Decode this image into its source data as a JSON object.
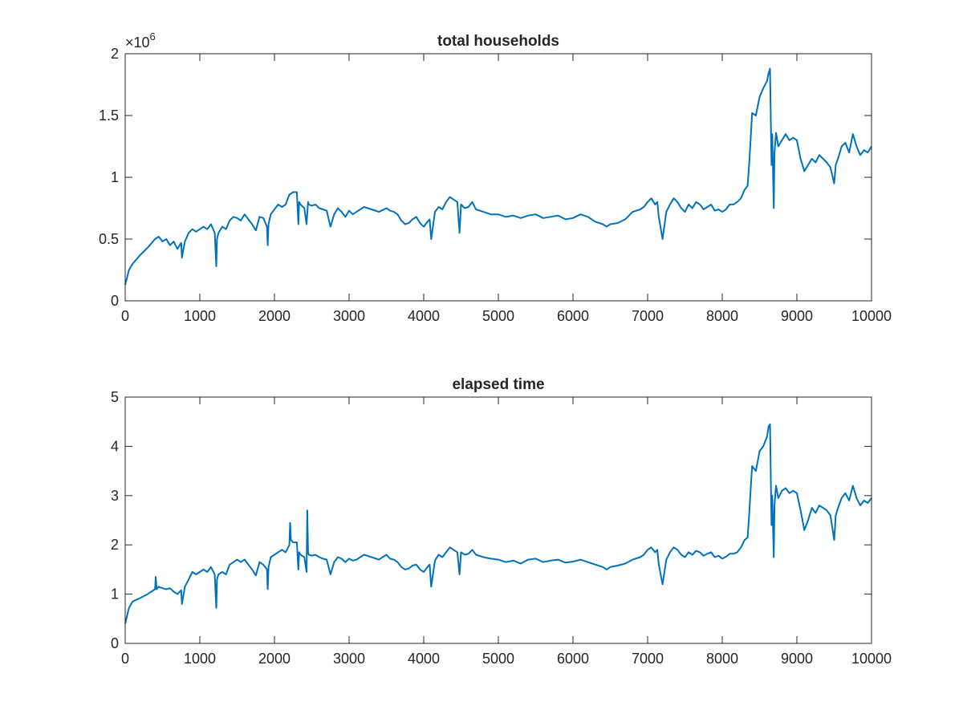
{
  "chart_data": [
    {
      "type": "line",
      "title": "total households",
      "xlim": [
        0,
        10000
      ],
      "ylim": [
        0,
        2
      ],
      "y_exponent_label": "×10",
      "y_exponent_power": "6",
      "xticks": [
        "0",
        "1000",
        "2000",
        "3000",
        "4000",
        "5000",
        "6000",
        "7000",
        "8000",
        "9000",
        "10000"
      ],
      "yticks": [
        "0",
        "0.5",
        "1",
        "1.5",
        "2"
      ],
      "grid": false,
      "line_color": "#0072BD",
      "series": [
        {
          "x": [
            0,
            50,
            100,
            200,
            300,
            400,
            450,
            500,
            550,
            600,
            650,
            700,
            750,
            760,
            800,
            850,
            900,
            950,
            1000,
            1050,
            1100,
            1150,
            1200,
            1220,
            1230,
            1250,
            1300,
            1350,
            1400,
            1450,
            1500,
            1550,
            1600,
            1650,
            1700,
            1750,
            1800,
            1850,
            1900,
            1910,
            1920,
            1950,
            2000,
            2050,
            2100,
            2150,
            2200,
            2250,
            2300,
            2320,
            2330,
            2350,
            2400,
            2430,
            2450,
            2460,
            2500,
            2550,
            2600,
            2650,
            2700,
            2750,
            2800,
            2850,
            2900,
            2950,
            3000,
            3050,
            3100,
            3200,
            3300,
            3400,
            3500,
            3550,
            3600,
            3650,
            3700,
            3750,
            3800,
            3850,
            3900,
            3950,
            4000,
            4050,
            4080,
            4100,
            4150,
            4200,
            4250,
            4300,
            4350,
            4400,
            4450,
            4480,
            4500,
            4550,
            4600,
            4650,
            4700,
            4800,
            4900,
            5000,
            5100,
            5200,
            5300,
            5400,
            5500,
            5600,
            5700,
            5800,
            5900,
            6000,
            6100,
            6200,
            6300,
            6400,
            6450,
            6500,
            6600,
            6700,
            6800,
            6900,
            6950,
            7000,
            7050,
            7100,
            7130,
            7150,
            7200,
            7250,
            7300,
            7350,
            7400,
            7450,
            7500,
            7550,
            7600,
            7650,
            7700,
            7750,
            7800,
            7850,
            7900,
            7950,
            8000,
            8050,
            8100,
            8150,
            8200,
            8250,
            8300,
            8340,
            8360,
            8380,
            8400,
            8450,
            8500,
            8550,
            8600,
            8620,
            8640,
            8660,
            8670,
            8690,
            8700,
            8720,
            8750,
            8800,
            8850,
            8900,
            8950,
            9000,
            9050,
            9100,
            9150,
            9200,
            9250,
            9300,
            9350,
            9400,
            9450,
            9500,
            9520,
            9550,
            9600,
            9650,
            9700,
            9750,
            9800,
            9850,
            9900,
            9950,
            10000
          ],
          "y": [
            0.13,
            0.25,
            0.3,
            0.37,
            0.43,
            0.5,
            0.52,
            0.48,
            0.5,
            0.45,
            0.48,
            0.42,
            0.47,
            0.35,
            0.48,
            0.55,
            0.58,
            0.56,
            0.58,
            0.6,
            0.58,
            0.62,
            0.55,
            0.28,
            0.5,
            0.55,
            0.6,
            0.58,
            0.65,
            0.68,
            0.67,
            0.65,
            0.7,
            0.66,
            0.62,
            0.57,
            0.68,
            0.67,
            0.6,
            0.45,
            0.62,
            0.7,
            0.74,
            0.78,
            0.76,
            0.78,
            0.86,
            0.88,
            0.88,
            0.62,
            0.8,
            0.78,
            0.75,
            0.62,
            0.8,
            0.78,
            0.77,
            0.78,
            0.75,
            0.74,
            0.73,
            0.6,
            0.7,
            0.75,
            0.72,
            0.68,
            0.73,
            0.7,
            0.72,
            0.76,
            0.74,
            0.72,
            0.75,
            0.73,
            0.72,
            0.7,
            0.65,
            0.62,
            0.63,
            0.66,
            0.68,
            0.63,
            0.6,
            0.64,
            0.66,
            0.5,
            0.72,
            0.76,
            0.74,
            0.8,
            0.84,
            0.82,
            0.8,
            0.55,
            0.78,
            0.75,
            0.76,
            0.8,
            0.74,
            0.72,
            0.7,
            0.7,
            0.68,
            0.69,
            0.67,
            0.69,
            0.7,
            0.67,
            0.68,
            0.69,
            0.66,
            0.67,
            0.7,
            0.68,
            0.64,
            0.62,
            0.6,
            0.62,
            0.63,
            0.66,
            0.72,
            0.74,
            0.76,
            0.8,
            0.83,
            0.78,
            0.8,
            0.68,
            0.5,
            0.72,
            0.78,
            0.83,
            0.8,
            0.75,
            0.72,
            0.78,
            0.75,
            0.8,
            0.78,
            0.74,
            0.76,
            0.78,
            0.73,
            0.74,
            0.72,
            0.74,
            0.78,
            0.78,
            0.8,
            0.83,
            0.9,
            0.93,
            1.1,
            1.3,
            1.52,
            1.5,
            1.65,
            1.72,
            1.78,
            1.84,
            1.88,
            1.1,
            1.35,
            0.75,
            1.2,
            1.36,
            1.25,
            1.3,
            1.35,
            1.3,
            1.32,
            1.3,
            1.15,
            1.05,
            1.1,
            1.15,
            1.12,
            1.18,
            1.15,
            1.12,
            1.08,
            0.95,
            1.1,
            1.15,
            1.25,
            1.28,
            1.2,
            1.35,
            1.25,
            1.18,
            1.22,
            1.2,
            1.25
          ]
        }
      ]
    },
    {
      "type": "line",
      "title": "elapsed time",
      "xlim": [
        0,
        10000
      ],
      "ylim": [
        0,
        5
      ],
      "xticks": [
        "0",
        "1000",
        "2000",
        "3000",
        "4000",
        "5000",
        "6000",
        "7000",
        "8000",
        "9000",
        "10000"
      ],
      "yticks": [
        "0",
        "1",
        "2",
        "3",
        "4",
        "5"
      ],
      "grid": false,
      "line_color": "#0072BD",
      "series": [
        {
          "x": [
            0,
            50,
            100,
            200,
            300,
            350,
            400,
            410,
            420,
            450,
            500,
            550,
            600,
            650,
            700,
            750,
            760,
            800,
            850,
            900,
            950,
            1000,
            1050,
            1100,
            1150,
            1200,
            1220,
            1230,
            1250,
            1300,
            1350,
            1400,
            1450,
            1500,
            1550,
            1600,
            1650,
            1700,
            1750,
            1800,
            1850,
            1900,
            1910,
            1920,
            1950,
            2000,
            2050,
            2100,
            2150,
            2200,
            2210,
            2220,
            2250,
            2300,
            2320,
            2330,
            2350,
            2400,
            2430,
            2440,
            2450,
            2460,
            2500,
            2550,
            2600,
            2650,
            2700,
            2750,
            2800,
            2850,
            2900,
            2950,
            3000,
            3050,
            3100,
            3200,
            3300,
            3400,
            3500,
            3550,
            3600,
            3650,
            3700,
            3750,
            3800,
            3850,
            3900,
            3950,
            4000,
            4050,
            4080,
            4100,
            4150,
            4200,
            4250,
            4300,
            4350,
            4400,
            4450,
            4480,
            4500,
            4550,
            4600,
            4650,
            4700,
            4800,
            4900,
            5000,
            5100,
            5200,
            5300,
            5400,
            5500,
            5600,
            5700,
            5800,
            5900,
            6000,
            6100,
            6200,
            6300,
            6400,
            6450,
            6500,
            6600,
            6700,
            6800,
            6900,
            6950,
            7000,
            7050,
            7100,
            7130,
            7150,
            7200,
            7250,
            7300,
            7350,
            7400,
            7450,
            7500,
            7550,
            7600,
            7650,
            7700,
            7750,
            7800,
            7850,
            7900,
            7950,
            8000,
            8050,
            8100,
            8150,
            8200,
            8250,
            8300,
            8340,
            8360,
            8380,
            8400,
            8450,
            8500,
            8550,
            8600,
            8620,
            8640,
            8660,
            8670,
            8690,
            8700,
            8720,
            8750,
            8800,
            8850,
            8900,
            8950,
            9000,
            9050,
            9100,
            9150,
            9200,
            9250,
            9300,
            9350,
            9400,
            9450,
            9500,
            9520,
            9550,
            9600,
            9650,
            9700,
            9750,
            9800,
            9850,
            9900,
            9950,
            10000
          ],
          "y": [
            0.4,
            0.72,
            0.85,
            0.92,
            1.0,
            1.05,
            1.1,
            1.35,
            1.1,
            1.15,
            1.12,
            1.1,
            1.12,
            1.05,
            1.0,
            1.08,
            0.8,
            1.15,
            1.3,
            1.45,
            1.4,
            1.45,
            1.5,
            1.45,
            1.55,
            1.4,
            0.72,
            1.3,
            1.4,
            1.45,
            1.4,
            1.6,
            1.65,
            1.7,
            1.65,
            1.7,
            1.6,
            1.5,
            1.38,
            1.65,
            1.6,
            1.5,
            1.1,
            1.55,
            1.75,
            1.8,
            1.85,
            1.9,
            1.85,
            2.0,
            2.45,
            2.1,
            2.05,
            2.05,
            1.5,
            1.85,
            1.8,
            1.75,
            1.45,
            2.7,
            1.85,
            1.8,
            1.78,
            1.8,
            1.75,
            1.72,
            1.7,
            1.4,
            1.65,
            1.75,
            1.72,
            1.65,
            1.72,
            1.68,
            1.7,
            1.8,
            1.75,
            1.7,
            1.8,
            1.72,
            1.7,
            1.65,
            1.55,
            1.5,
            1.52,
            1.58,
            1.6,
            1.5,
            1.45,
            1.55,
            1.6,
            1.15,
            1.68,
            1.8,
            1.75,
            1.85,
            1.95,
            1.9,
            1.85,
            1.4,
            1.85,
            1.8,
            1.82,
            1.9,
            1.8,
            1.75,
            1.72,
            1.7,
            1.65,
            1.68,
            1.62,
            1.7,
            1.72,
            1.65,
            1.68,
            1.7,
            1.64,
            1.66,
            1.7,
            1.65,
            1.6,
            1.55,
            1.5,
            1.55,
            1.58,
            1.62,
            1.7,
            1.75,
            1.8,
            1.9,
            1.95,
            1.85,
            1.9,
            1.6,
            1.2,
            1.7,
            1.85,
            1.95,
            1.9,
            1.8,
            1.75,
            1.85,
            1.8,
            1.88,
            1.85,
            1.78,
            1.82,
            1.85,
            1.75,
            1.78,
            1.72,
            1.76,
            1.82,
            1.82,
            1.85,
            1.95,
            2.1,
            2.15,
            2.6,
            3.1,
            3.6,
            3.5,
            3.9,
            4.0,
            4.2,
            4.4,
            4.45,
            2.4,
            3.0,
            1.75,
            2.8,
            3.2,
            2.95,
            3.1,
            3.15,
            3.05,
            3.1,
            3.05,
            2.7,
            2.3,
            2.5,
            2.75,
            2.65,
            2.8,
            2.75,
            2.7,
            2.6,
            2.1,
            2.6,
            2.75,
            2.95,
            3.05,
            2.9,
            3.2,
            2.95,
            2.8,
            2.9,
            2.85,
            2.95
          ]
        }
      ]
    }
  ]
}
